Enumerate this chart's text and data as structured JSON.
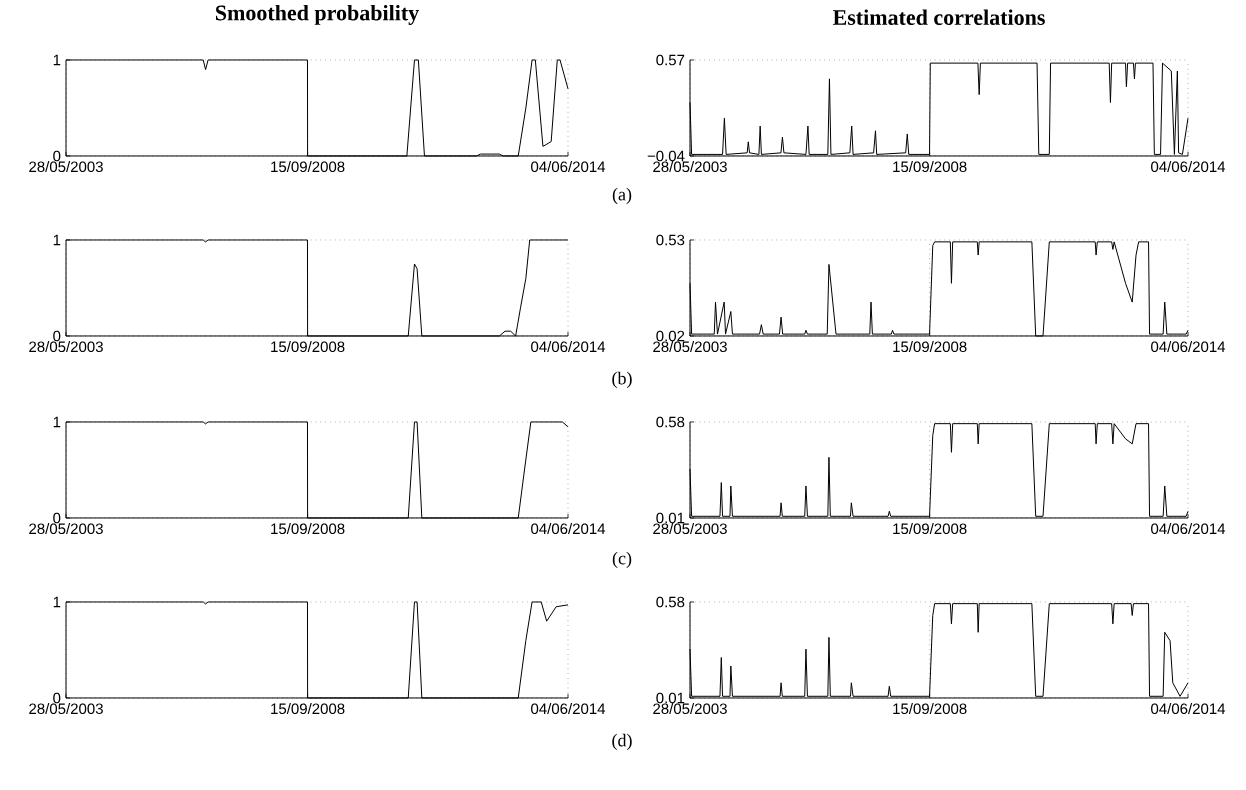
{
  "chart_data": [
    {
      "type": "line",
      "title": "Smoothed probability",
      "annotations": [
        "(a)"
      ],
      "color": "#000000",
      "grid": true,
      "xlim": [
        "2003-05-28",
        "2014-06-04"
      ],
      "xticks": [
        {
          "value": "2003-05-28",
          "label": "28/05/2003"
        },
        {
          "value": "2008-09-15",
          "label": "15/09/2008"
        },
        {
          "value": "2014-06-04",
          "label": "04/06/2014"
        }
      ],
      "ylim": [
        0,
        1
      ],
      "yticks": [
        0,
        1
      ],
      "x": [
        "2003-05-28",
        "2006-06-01",
        "2006-06-20",
        "2006-07-10",
        "2008-09-14",
        "2008-09-15",
        "2010-11-20",
        "2011-01-20",
        "2011-02-20",
        "2011-04-10",
        "2012-06-01",
        "2012-07-01",
        "2012-12-01",
        "2013-01-01",
        "2013-05-01",
        "2013-07-01",
        "2013-08-20",
        "2013-09-15",
        "2013-11-15",
        "2014-01-20",
        "2014-03-10",
        "2014-04-01",
        "2014-06-04"
      ],
      "values": [
        1,
        1,
        0.9,
        1,
        1,
        0,
        0,
        1,
        1,
        0,
        0,
        0.02,
        0.02,
        0,
        0,
        0.5,
        1,
        1,
        0.1,
        0.15,
        1,
        1,
        0.7
      ]
    },
    {
      "type": "line",
      "title": "Estimated correlations",
      "color": "#000000",
      "grid": true,
      "xlim": [
        "2003-05-28",
        "2014-06-04"
      ],
      "xticks": [
        {
          "value": "2003-05-28",
          "label": "28/05/2003"
        },
        {
          "value": "2008-09-15",
          "label": "15/09/2008"
        },
        {
          "value": "2014-06-04",
          "label": "04/06/2014"
        }
      ],
      "ylim": [
        -0.04,
        0.57
      ],
      "yticks": [
        {
          "value": -0.04,
          "label": "−0.04"
        },
        0.57
      ],
      "x": [
        "2003-05-28",
        "2003-06-10",
        "2004-02-15",
        "2004-03-01",
        "2004-03-15",
        "2004-09-01",
        "2004-09-10",
        "2004-09-20",
        "2004-12-05",
        "2004-12-15",
        "2004-12-25",
        "2005-06-01",
        "2005-06-13",
        "2005-06-25",
        "2005-12-20",
        "2006-01-05",
        "2006-01-15",
        "2006-06-15",
        "2006-06-28",
        "2006-07-10",
        "2006-12-10",
        "2006-12-25",
        "2007-01-05",
        "2007-06-20",
        "2007-07-05",
        "2007-07-15",
        "2008-03-05",
        "2008-03-18",
        "2008-03-30",
        "2008-09-14",
        "2008-09-20",
        "2009-10-10",
        "2009-10-20",
        "2009-10-30",
        "2011-01-31",
        "2011-02-14",
        "2011-05-10",
        "2011-05-20",
        "2012-09-05",
        "2012-09-15",
        "2012-09-25",
        "2013-01-15",
        "2013-01-22",
        "2013-02-01",
        "2013-03-20",
        "2013-03-28",
        "2013-04-05",
        "2013-08-25",
        "2013-09-05",
        "2013-10-25",
        "2013-11-10",
        "2014-01-20",
        "2014-02-14",
        "2014-03-10",
        "2014-03-20",
        "2014-04-20",
        "2014-06-04"
      ],
      "values": [
        0.3,
        -0.03,
        -0.03,
        0.2,
        -0.03,
        -0.02,
        0.05,
        -0.02,
        -0.03,
        0.15,
        -0.03,
        -0.02,
        0.08,
        -0.02,
        -0.03,
        0.15,
        -0.03,
        -0.03,
        0.45,
        -0.03,
        -0.02,
        0.15,
        -0.03,
        -0.02,
        0.12,
        -0.03,
        -0.02,
        0.1,
        -0.03,
        -0.03,
        0.55,
        0.55,
        0.35,
        0.55,
        0.55,
        -0.03,
        -0.03,
        0.55,
        0.55,
        0.3,
        0.55,
        0.55,
        0.4,
        0.55,
        0.55,
        0.45,
        0.55,
        0.55,
        -0.03,
        -0.03,
        0.55,
        0.5,
        -0.03,
        0.5,
        -0.02,
        -0.03,
        0.2
      ]
    },
    {
      "type": "line",
      "annotations": [
        "(b)"
      ],
      "color": "#000000",
      "grid": true,
      "xlim": [
        "2003-05-28",
        "2014-06-04"
      ],
      "xticks": [
        {
          "value": "2003-05-28",
          "label": "28/05/2003"
        },
        {
          "value": "2008-09-15",
          "label": "15/09/2008"
        },
        {
          "value": "2014-06-04",
          "label": "04/06/2014"
        }
      ],
      "ylim": [
        0,
        1
      ],
      "yticks": [
        0,
        1
      ],
      "x": [
        "2003-05-28",
        "2006-06-01",
        "2006-06-20",
        "2006-07-10",
        "2008-09-14",
        "2008-09-15",
        "2010-12-01",
        "2011-01-20",
        "2011-02-10",
        "2011-03-20",
        "2012-12-01",
        "2013-01-15",
        "2013-03-01",
        "2013-04-10",
        "2013-05-20",
        "2013-07-01",
        "2013-08-01",
        "2014-06-04"
      ],
      "values": [
        1,
        1,
        0.98,
        1,
        1,
        0,
        0,
        0.75,
        0.7,
        0,
        0,
        0.05,
        0.05,
        0,
        0.3,
        0.6,
        1,
        1
      ]
    },
    {
      "type": "line",
      "color": "#000000",
      "grid": true,
      "xlim": [
        "2003-05-28",
        "2014-06-04"
      ],
      "xticks": [
        {
          "value": "2003-05-28",
          "label": "28/05/2003"
        },
        {
          "value": "2008-09-15",
          "label": "15/09/2008"
        },
        {
          "value": "2014-06-04",
          "label": "04/06/2014"
        }
      ],
      "ylim": [
        0.02,
        0.53
      ],
      "yticks": [
        0.02,
        0.53
      ],
      "x": [
        "2003-05-28",
        "2003-06-10",
        "2003-12-10",
        "2003-12-20",
        "2004-01-05",
        "2004-02-28",
        "2004-03-10",
        "2004-04-22",
        "2004-05-05",
        "2004-12-10",
        "2004-12-25",
        "2005-01-08",
        "2005-05-20",
        "2005-06-02",
        "2005-06-15",
        "2005-12-10",
        "2005-12-20",
        "2006-01-01",
        "2006-06-10",
        "2006-06-24",
        "2006-08-20",
        "2007-05-20",
        "2007-05-30",
        "2007-06-10",
        "2007-11-10",
        "2007-11-20",
        "2007-12-01",
        "2008-09-14",
        "2008-10-10",
        "2008-10-25",
        "2009-03-01",
        "2009-03-10",
        "2009-03-20",
        "2009-10-05",
        "2009-10-12",
        "2009-10-20",
        "2010-12-20",
        "2011-01-20",
        "2011-03-20",
        "2011-05-10",
        "2012-05-15",
        "2012-05-22",
        "2012-06-01",
        "2012-09-25",
        "2012-10-05",
        "2012-10-15",
        "2013-01-15",
        "2013-03-10",
        "2013-04-10",
        "2013-05-01",
        "2013-07-20",
        "2013-07-28",
        "2013-11-15",
        "2013-11-28",
        "2013-12-15",
        "2014-05-20",
        "2014-06-04"
      ],
      "values": [
        0.3,
        0.03,
        0.03,
        0.2,
        0.03,
        0.2,
        0.03,
        0.15,
        0.03,
        0.03,
        0.08,
        0.03,
        0.03,
        0.12,
        0.03,
        0.03,
        0.05,
        0.03,
        0.03,
        0.4,
        0.03,
        0.03,
        0.2,
        0.03,
        0.03,
        0.05,
        0.03,
        0.03,
        0.5,
        0.52,
        0.52,
        0.3,
        0.52,
        0.52,
        0.45,
        0.52,
        0.52,
        0.02,
        0.02,
        0.52,
        0.52,
        0.45,
        0.52,
        0.52,
        0.48,
        0.52,
        0.3,
        0.2,
        0.45,
        0.52,
        0.52,
        0.03,
        0.03,
        0.2,
        0.03,
        0.03,
        0.05
      ]
    },
    {
      "type": "line",
      "annotations": [
        "(c)"
      ],
      "color": "#000000",
      "grid": true,
      "xlim": [
        "2003-05-28",
        "2014-06-04"
      ],
      "xticks": [
        {
          "value": "2003-05-28",
          "label": "28/05/2003"
        },
        {
          "value": "2008-09-15",
          "label": "15/09/2008"
        },
        {
          "value": "2014-06-04",
          "label": "04/06/2014"
        }
      ],
      "ylim": [
        0,
        1
      ],
      "yticks": [
        0,
        1
      ],
      "x": [
        "2003-05-28",
        "2006-06-01",
        "2006-06-20",
        "2006-07-10",
        "2008-09-14",
        "2008-09-15",
        "2010-12-01",
        "2011-01-20",
        "2011-02-10",
        "2011-03-20",
        "2013-05-01",
        "2013-06-20",
        "2013-08-10",
        "2014-04-20",
        "2014-06-04"
      ],
      "values": [
        1,
        1,
        0.98,
        1,
        1,
        0,
        0,
        1,
        1,
        0,
        0,
        0.5,
        1,
        1,
        0.95
      ]
    },
    {
      "type": "line",
      "color": "#000000",
      "grid": true,
      "xlim": [
        "2003-05-28",
        "2014-06-04"
      ],
      "xticks": [
        {
          "value": "2003-05-28",
          "label": "28/05/2003"
        },
        {
          "value": "2008-09-15",
          "label": "15/09/2008"
        },
        {
          "value": "2014-06-04",
          "label": "04/06/2014"
        }
      ],
      "ylim": [
        0.01,
        0.58
      ],
      "yticks": [
        0.01,
        0.58
      ],
      "x": [
        "2003-05-28",
        "2003-06-10",
        "2004-01-25",
        "2004-02-05",
        "2004-02-15",
        "2004-04-15",
        "2004-04-22",
        "2004-05-05",
        "2005-05-25",
        "2005-06-02",
        "2005-06-12",
        "2005-12-10",
        "2005-12-20",
        "2006-01-01",
        "2006-06-15",
        "2006-06-24",
        "2006-07-05",
        "2006-12-15",
        "2006-12-22",
        "2007-01-05",
        "2007-10-15",
        "2007-10-25",
        "2007-11-05",
        "2008-09-14",
        "2008-10-10",
        "2008-10-25",
        "2009-03-01",
        "2009-03-10",
        "2009-03-20",
        "2009-10-05",
        "2009-10-12",
        "2009-10-20",
        "2010-12-20",
        "2011-01-20",
        "2011-03-20",
        "2011-05-10",
        "2012-05-15",
        "2012-05-22",
        "2012-06-01",
        "2012-09-25",
        "2012-10-05",
        "2012-10-15",
        "2013-01-15",
        "2013-03-10",
        "2013-04-10",
        "2013-07-20",
        "2013-07-28",
        "2013-11-15",
        "2013-11-28",
        "2013-12-15",
        "2014-05-20",
        "2014-06-04"
      ],
      "values": [
        0.3,
        0.02,
        0.02,
        0.22,
        0.02,
        0.02,
        0.2,
        0.02,
        0.02,
        0.1,
        0.02,
        0.02,
        0.2,
        0.02,
        0.02,
        0.37,
        0.02,
        0.02,
        0.1,
        0.02,
        0.02,
        0.05,
        0.02,
        0.02,
        0.5,
        0.57,
        0.57,
        0.4,
        0.57,
        0.57,
        0.45,
        0.57,
        0.57,
        0.02,
        0.02,
        0.57,
        0.57,
        0.45,
        0.57,
        0.57,
        0.45,
        0.57,
        0.48,
        0.45,
        0.57,
        0.57,
        0.02,
        0.02,
        0.2,
        0.02,
        0.02,
        0.05
      ]
    },
    {
      "type": "line",
      "annotations": [
        "(d)"
      ],
      "color": "#000000",
      "grid": true,
      "xlim": [
        "2003-05-28",
        "2014-06-04"
      ],
      "xticks": [
        {
          "value": "2003-05-28",
          "label": "28/05/2003"
        },
        {
          "value": "2008-09-15",
          "label": "15/09/2008"
        },
        {
          "value": "2014-06-04",
          "label": "04/06/2014"
        }
      ],
      "ylim": [
        0,
        1
      ],
      "yticks": [
        0,
        1
      ],
      "x": [
        "2003-05-28",
        "2006-06-01",
        "2006-06-20",
        "2006-07-10",
        "2008-09-14",
        "2008-09-15",
        "2010-12-01",
        "2011-01-20",
        "2011-02-10",
        "2011-03-20",
        "2013-05-01",
        "2013-07-01",
        "2013-08-20",
        "2013-11-01",
        "2013-12-15",
        "2014-03-01",
        "2014-06-04"
      ],
      "values": [
        1,
        1,
        0.98,
        1,
        1,
        0,
        0,
        1,
        1,
        0,
        0,
        0.6,
        1,
        1,
        0.8,
        0.95,
        0.97
      ]
    },
    {
      "type": "line",
      "color": "#000000",
      "grid": true,
      "xlim": [
        "2003-05-28",
        "2014-06-04"
      ],
      "xticks": [
        {
          "value": "2003-05-28",
          "label": "28/05/2003"
        },
        {
          "value": "2008-09-15",
          "label": "15/09/2008"
        },
        {
          "value": "2014-06-04",
          "label": "04/06/2014"
        }
      ],
      "ylim": [
        0.01,
        0.58
      ],
      "yticks": [
        0.01,
        0.58
      ],
      "x": [
        "2003-05-28",
        "2003-06-10",
        "2004-01-25",
        "2004-02-05",
        "2004-02-15",
        "2004-04-15",
        "2004-04-22",
        "2004-05-05",
        "2005-05-25",
        "2005-06-02",
        "2005-06-12",
        "2005-12-10",
        "2005-12-20",
        "2006-01-01",
        "2006-06-15",
        "2006-06-24",
        "2006-07-05",
        "2006-12-15",
        "2006-12-22",
        "2007-01-05",
        "2007-10-15",
        "2007-10-25",
        "2007-11-05",
        "2008-09-14",
        "2008-10-10",
        "2008-10-25",
        "2009-03-01",
        "2009-03-10",
        "2009-03-20",
        "2009-10-05",
        "2009-10-12",
        "2009-10-20",
        "2010-12-20",
        "2011-01-20",
        "2011-03-20",
        "2011-05-10",
        "2012-09-25",
        "2012-10-05",
        "2012-10-15",
        "2013-03-01",
        "2013-03-10",
        "2013-03-20",
        "2013-07-20",
        "2013-07-28",
        "2013-11-15",
        "2013-11-28",
        "2014-01-10",
        "2014-02-01",
        "2014-04-01",
        "2014-06-04"
      ],
      "values": [
        0.3,
        0.02,
        0.02,
        0.25,
        0.02,
        0.02,
        0.2,
        0.02,
        0.02,
        0.1,
        0.02,
        0.02,
        0.3,
        0.02,
        0.02,
        0.37,
        0.02,
        0.02,
        0.1,
        0.02,
        0.02,
        0.08,
        0.02,
        0.02,
        0.5,
        0.57,
        0.57,
        0.45,
        0.57,
        0.57,
        0.4,
        0.57,
        0.57,
        0.02,
        0.02,
        0.57,
        0.57,
        0.45,
        0.57,
        0.57,
        0.5,
        0.57,
        0.57,
        0.02,
        0.02,
        0.4,
        0.35,
        0.1,
        0.02,
        0.1
      ]
    }
  ]
}
